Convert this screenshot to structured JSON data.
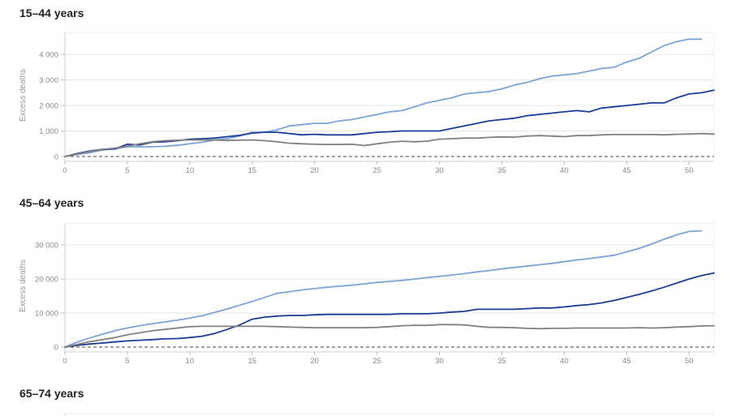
{
  "panels": [
    {
      "title": "15–44 years",
      "chart_data": {
        "type": "line",
        "ylabel": "Excess deaths",
        "xlim": [
          0,
          52
        ],
        "ylim": [
          0,
          4800
        ],
        "x_ticks": [
          0,
          5,
          10,
          15,
          20,
          25,
          30,
          35,
          40,
          45,
          50
        ],
        "y_ticks": [
          0,
          1000,
          2000,
          3000,
          4000
        ],
        "y_tick_labels": [
          "0",
          "1 000",
          "2 000",
          "3 000",
          "4 000"
        ],
        "grid": true,
        "baseline": 0,
        "series": [
          {
            "color": "#7aa3d8",
            "x": [
              0,
              1,
              2,
              3,
              4,
              5,
              6,
              7,
              8,
              9,
              10,
              11,
              12,
              13,
              14,
              15,
              16,
              17,
              18,
              19,
              20,
              21,
              22,
              23,
              24,
              25,
              26,
              27,
              28,
              29,
              30,
              31,
              32,
              33,
              34,
              35,
              36,
              37,
              38,
              39,
              40,
              41,
              42,
              43,
              44,
              45,
              46,
              47,
              48,
              49,
              50,
              51
            ],
            "y": [
              0,
              80,
              150,
              250,
              300,
              380,
              380,
              380,
              400,
              440,
              500,
              560,
              650,
              700,
              800,
              950,
              950,
              1050,
              1200,
              1250,
              1300,
              1300,
              1400,
              1450,
              1550,
              1650,
              1750,
              1800,
              1950,
              2100,
              2200,
              2300,
              2450,
              2500,
              2550,
              2650,
              2800,
              2900,
              3050,
              3150,
              3200,
              3250,
              3350,
              3450,
              3500,
              3700,
              3850,
              4100,
              4350,
              4500,
              4600,
              4600
            ]
          },
          {
            "color": "#1a3c96",
            "x": [
              0,
              1,
              2,
              3,
              4,
              5,
              6,
              7,
              8,
              9,
              10,
              11,
              12,
              13,
              14,
              15,
              16,
              17,
              18,
              19,
              20,
              21,
              22,
              23,
              24,
              25,
              26,
              27,
              28,
              29,
              30,
              31,
              32,
              33,
              34,
              35,
              36,
              37,
              38,
              39,
              40,
              41,
              42,
              43,
              44,
              45,
              46,
              47,
              48,
              49,
              50,
              51,
              52
            ],
            "y": [
              0,
              120,
              220,
              280,
              300,
              480,
              450,
              560,
              580,
              620,
              680,
              700,
              720,
              780,
              830,
              920,
              950,
              950,
              900,
              850,
              870,
              850,
              850,
              850,
              900,
              950,
              970,
              1000,
              1000,
              1000,
              1000,
              1100,
              1200,
              1300,
              1400,
              1450,
              1500,
              1600,
              1650,
              1700,
              1750,
              1800,
              1750,
              1900,
              1950,
              2000,
              2050,
              2100,
              2100,
              2300,
              2450,
              2500,
              2600
            ]
          },
          {
            "color": "#808080",
            "x": [
              0,
              1,
              2,
              3,
              4,
              5,
              6,
              7,
              8,
              9,
              10,
              11,
              12,
              13,
              14,
              15,
              16,
              17,
              18,
              19,
              20,
              21,
              22,
              23,
              24,
              25,
              26,
              27,
              28,
              29,
              30,
              31,
              32,
              33,
              34,
              35,
              36,
              37,
              38,
              39,
              40,
              41,
              42,
              43,
              44,
              45,
              46,
              47,
              48,
              49,
              50,
              51,
              52
            ],
            "y": [
              0,
              100,
              200,
              280,
              330,
              400,
              500,
              580,
              620,
              640,
              650,
              650,
              650,
              630,
              640,
              650,
              620,
              580,
              520,
              500,
              480,
              470,
              470,
              480,
              430,
              500,
              560,
              600,
              580,
              600,
              680,
              700,
              720,
              720,
              750,
              770,
              760,
              800,
              820,
              800,
              780,
              820,
              820,
              850,
              860,
              860,
              860,
              860,
              850,
              870,
              880,
              900,
              880
            ]
          }
        ]
      }
    },
    {
      "title": "45–64 years",
      "chart_data": {
        "type": "line",
        "ylabel": "Excess deaths",
        "xlim": [
          0,
          52
        ],
        "ylim": [
          0,
          36000
        ],
        "x_ticks": [
          0,
          5,
          10,
          15,
          20,
          25,
          30,
          35,
          40,
          45,
          50
        ],
        "y_ticks": [
          0,
          10000,
          20000,
          30000
        ],
        "y_tick_labels": [
          "0",
          "10 000",
          "20 000",
          "30 000"
        ],
        "grid": true,
        "baseline": 0,
        "series": [
          {
            "color": "#7aa3d8",
            "x": [
              0,
              1,
              2,
              3,
              4,
              5,
              6,
              7,
              8,
              9,
              10,
              11,
              12,
              13,
              14,
              15,
              16,
              17,
              18,
              19,
              20,
              21,
              22,
              23,
              24,
              25,
              26,
              27,
              28,
              29,
              30,
              31,
              32,
              33,
              34,
              35,
              36,
              37,
              38,
              39,
              40,
              41,
              42,
              43,
              44,
              45,
              46,
              47,
              48,
              49,
              50,
              51
            ],
            "y": [
              0,
              1500,
              2700,
              3800,
              4800,
              5600,
              6300,
              6900,
              7400,
              7900,
              8500,
              9200,
              10200,
              11200,
              12300,
              13400,
              14600,
              15800,
              16300,
              16800,
              17200,
              17600,
              17900,
              18200,
              18600,
              19000,
              19300,
              19600,
              20000,
              20400,
              20800,
              21200,
              21600,
              22100,
              22500,
              23000,
              23400,
              23800,
              24200,
              24600,
              25100,
              25600,
              26000,
              26500,
              27000,
              28000,
              29000,
              30300,
              31700,
              33000,
              34000,
              34200
            ]
          },
          {
            "color": "#1a3c96",
            "x": [
              0,
              1,
              2,
              3,
              4,
              5,
              6,
              7,
              8,
              9,
              10,
              11,
              12,
              13,
              14,
              15,
              16,
              17,
              18,
              19,
              20,
              21,
              22,
              23,
              24,
              25,
              26,
              27,
              28,
              29,
              30,
              31,
              32,
              33,
              34,
              35,
              36,
              37,
              38,
              39,
              40,
              41,
              42,
              43,
              44,
              45,
              46,
              47,
              48,
              49,
              50,
              51,
              52
            ],
            "y": [
              0,
              500,
              900,
              1200,
              1500,
              1800,
              2000,
              2200,
              2400,
              2500,
              2800,
              3200,
              4000,
              5200,
              6500,
              8200,
              8800,
              9100,
              9300,
              9300,
              9500,
              9600,
              9600,
              9600,
              9600,
              9600,
              9600,
              9800,
              9800,
              9800,
              10000,
              10300,
              10500,
              11100,
              11100,
              11100,
              11100,
              11300,
              11500,
              11500,
              11800,
              12200,
              12500,
              13000,
              13700,
              14600,
              15500,
              16500,
              17600,
              18800,
              20000,
              21000,
              21800
            ]
          },
          {
            "color": "#808080",
            "x": [
              0,
              1,
              2,
              3,
              4,
              5,
              6,
              7,
              8,
              9,
              10,
              11,
              12,
              13,
              14,
              15,
              16,
              17,
              18,
              19,
              20,
              21,
              22,
              23,
              24,
              25,
              26,
              27,
              28,
              29,
              30,
              31,
              32,
              33,
              34,
              35,
              36,
              37,
              38,
              39,
              40,
              41,
              42,
              43,
              44,
              45,
              46,
              47,
              48,
              49,
              50,
              51,
              52
            ],
            "y": [
              0,
              800,
              1600,
              2200,
              2800,
              3600,
              4200,
              4800,
              5200,
              5600,
              6000,
              6100,
              6100,
              6100,
              6100,
              6100,
              6100,
              6000,
              5900,
              5800,
              5700,
              5700,
              5700,
              5700,
              5700,
              5800,
              6000,
              6300,
              6400,
              6400,
              6600,
              6600,
              6500,
              6100,
              5800,
              5800,
              5700,
              5500,
              5400,
              5500,
              5500,
              5600,
              5600,
              5600,
              5600,
              5600,
              5700,
              5600,
              5700,
              5900,
              6000,
              6200,
              6300
            ]
          }
        ]
      }
    },
    {
      "title": "65–74 years"
    }
  ]
}
